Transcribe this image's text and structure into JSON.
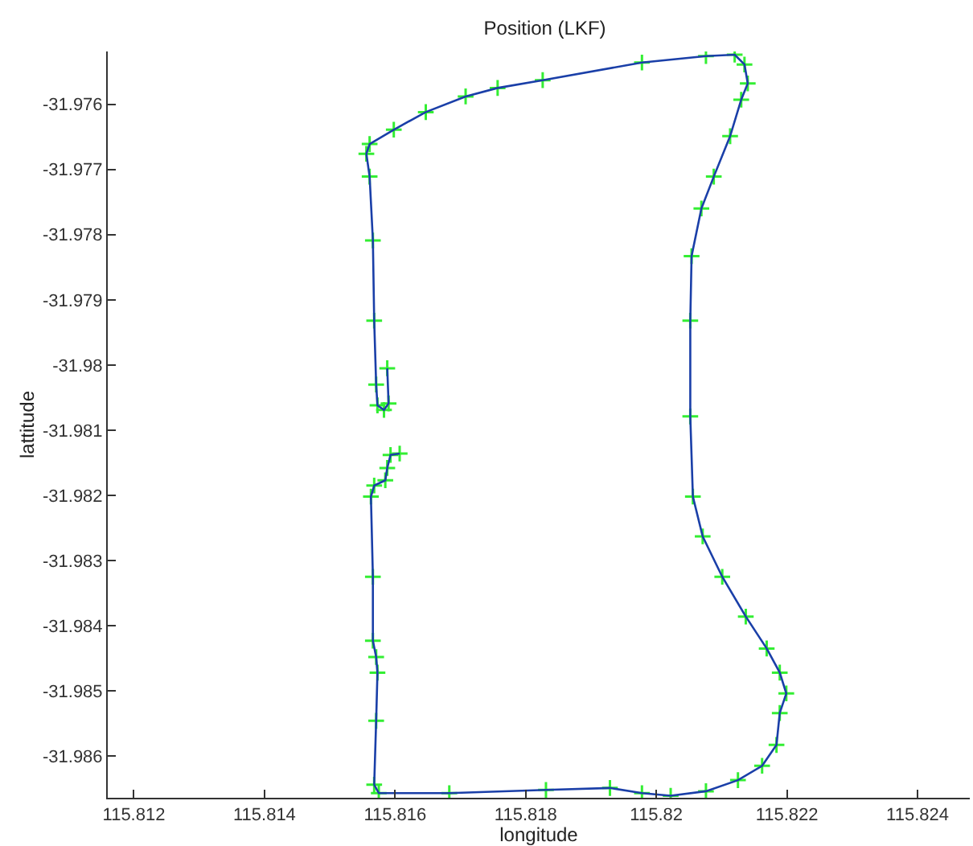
{
  "chart_data": {
    "type": "line",
    "title": "Position (LKF)",
    "xlabel": "longitude",
    "ylabel": "lattitude",
    "x": [
      115.81607,
      115.81593,
      115.81588,
      115.81585,
      115.81568,
      115.81563,
      115.81566,
      115.81566,
      115.81571,
      115.81573,
      115.81571,
      115.81568,
      115.81575,
      115.81683,
      115.81831,
      115.81929,
      115.81978,
      115.82022,
      115.82076,
      115.82125,
      115.82162,
      115.82184,
      115.82189,
      115.82199,
      115.82189,
      115.82169,
      115.82137,
      115.82101,
      115.82071,
      115.82056,
      115.82052,
      115.82052,
      115.82054,
      115.82069,
      115.82088,
      115.82113,
      115.8213,
      115.8214,
      115.82135,
      115.8212,
      115.82076,
      115.81978,
      115.81826,
      115.81757,
      115.81708,
      115.81647,
      115.81598,
      115.81561,
      115.81556,
      115.81561,
      115.81566,
      115.81568,
      115.81571,
      115.81573,
      115.81583,
      115.8159,
      115.81588
    ],
    "series": [
      {
        "color": "#1a3fa8",
        "marker": "none",
        "values": [
          -31.98136,
          -31.98138,
          -31.98158,
          -31.98177,
          -31.98185,
          -31.98202,
          -31.98325,
          -31.98423,
          -31.98448,
          -31.98472,
          -31.98546,
          -31.98644,
          -31.98657,
          -31.98657,
          -31.98652,
          -31.98649,
          -31.98657,
          -31.98661,
          -31.98654,
          -31.98637,
          -31.98615,
          -31.98583,
          -31.98534,
          -31.98504,
          -31.98472,
          -31.98435,
          -31.98386,
          -31.98325,
          -31.98263,
          -31.98202,
          -31.98079,
          -31.97932,
          -31.97833,
          -31.9776,
          -31.97711,
          -31.97649,
          -31.97593,
          -31.97568,
          -31.97539,
          -31.97524,
          -31.97526,
          -31.97536,
          -31.97563,
          -31.97575,
          -31.97588,
          -31.97612,
          -31.97639,
          -31.97661,
          -31.97676,
          -31.97711,
          -31.97809,
          -31.97932,
          -31.9803,
          -31.98062,
          -31.98069,
          -31.98059,
          -31.98005
        ]
      },
      {
        "type": "scatter",
        "color": "#33ee33",
        "marker": "cross",
        "values": [
          -31.98136,
          -31.98138,
          -31.98158,
          -31.98177,
          -31.98185,
          -31.98202,
          -31.98325,
          -31.98423,
          -31.98448,
          -31.98472,
          -31.98546,
          -31.98644,
          -31.98657,
          -31.98657,
          -31.98652,
          -31.98649,
          -31.98657,
          -31.98661,
          -31.98654,
          -31.98637,
          -31.98615,
          -31.98583,
          -31.98534,
          -31.98504,
          -31.98472,
          -31.98435,
          -31.98386,
          -31.98325,
          -31.98263,
          -31.98202,
          -31.98079,
          -31.97932,
          -31.97833,
          -31.9776,
          -31.97711,
          -31.97649,
          -31.97593,
          -31.97568,
          -31.97539,
          -31.97524,
          -31.97526,
          -31.97536,
          -31.97563,
          -31.97575,
          -31.97588,
          -31.97612,
          -31.97639,
          -31.97661,
          -31.97676,
          -31.97711,
          -31.97809,
          -31.97932,
          -31.9803,
          -31.98062,
          -31.98069,
          -31.98059,
          -31.98005
        ]
      }
    ],
    "xlim": [
      115.8116,
      115.8248
    ],
    "ylim": [
      -31.98664,
      -31.97519
    ],
    "xticks": [
      115.812,
      115.814,
      115.816,
      115.818,
      115.82,
      115.822,
      115.824
    ],
    "yticks": [
      -31.986,
      -31.985,
      -31.984,
      -31.983,
      -31.982,
      -31.981,
      -31.98,
      -31.979,
      -31.978,
      -31.977,
      -31.976
    ],
    "grid": false
  }
}
